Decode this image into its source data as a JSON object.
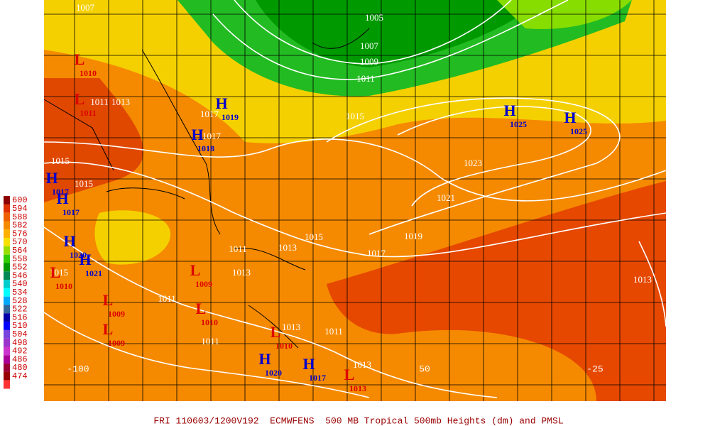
{
  "title": "FRI 110603/1200V192  ECMWFENS  500 MB Tropical 500mb Heights (dm) and PMSL",
  "legend": [
    {
      "label": "600",
      "color": "#8b0000"
    },
    {
      "label": "594",
      "color": "#e03000"
    },
    {
      "label": "588",
      "color": "#f06000"
    },
    {
      "label": "582",
      "color": "#f58a00"
    },
    {
      "label": "576",
      "color": "#ffb000"
    },
    {
      "label": "570",
      "color": "#f5e000"
    },
    {
      "label": "564",
      "color": "#99dd00"
    },
    {
      "label": "558",
      "color": "#33cc00"
    },
    {
      "label": "552",
      "color": "#009900"
    },
    {
      "label": "546",
      "color": "#008855"
    },
    {
      "label": "540",
      "color": "#00cccc"
    },
    {
      "label": "534",
      "color": "#00ffff"
    },
    {
      "label": "528",
      "color": "#00aaff"
    },
    {
      "label": "522",
      "color": "#336699"
    },
    {
      "label": "516",
      "color": "#0000aa"
    },
    {
      "label": "510",
      "color": "#0000ff"
    },
    {
      "label": "504",
      "color": "#7744dd"
    },
    {
      "label": "498",
      "color": "#9933cc"
    },
    {
      "label": "492",
      "color": "#cc33cc"
    },
    {
      "label": "486",
      "color": "#aa0099"
    },
    {
      "label": "480",
      "color": "#990033"
    },
    {
      "label": "474",
      "color": "#990000"
    }
  ],
  "longitudes": [
    "-100",
    "50",
    "-25"
  ],
  "isobar_labels": [
    "1013",
    "1015",
    "1015",
    "1017",
    "1015",
    "1023",
    "1021",
    "1019",
    "1017",
    "1015",
    "1013",
    "1011",
    "1011",
    "1011",
    "1013",
    "1011",
    "1013",
    "1007",
    "1005",
    "1007",
    "1009",
    "1011",
    "1017",
    "1013",
    "1015",
    "1013",
    "1011"
  ],
  "centers": [
    {
      "symbol": "L",
      "value": 1010
    },
    {
      "symbol": "L",
      "value": 1011
    },
    {
      "symbol": "H",
      "value": 1019
    },
    {
      "symbol": "H",
      "value": 1018
    },
    {
      "symbol": "H",
      "value": 1017
    },
    {
      "symbol": "H",
      "value": 1017
    },
    {
      "symbol": "H",
      "value": 1020
    },
    {
      "symbol": "H",
      "value": 1021
    },
    {
      "symbol": "L",
      "value": 1010
    },
    {
      "symbol": "L",
      "value": 1009
    },
    {
      "symbol": "L",
      "value": 1009
    },
    {
      "symbol": "L",
      "value": 1010
    },
    {
      "symbol": "L",
      "value": 1009
    },
    {
      "symbol": "H",
      "value": 1020
    },
    {
      "symbol": "H",
      "value": 1017
    },
    {
      "symbol": "L",
      "value": 1013
    },
    {
      "symbol": "L",
      "value": 1010
    },
    {
      "symbol": "H",
      "value": 1025
    },
    {
      "symbol": "H",
      "value": 1025
    }
  ]
}
